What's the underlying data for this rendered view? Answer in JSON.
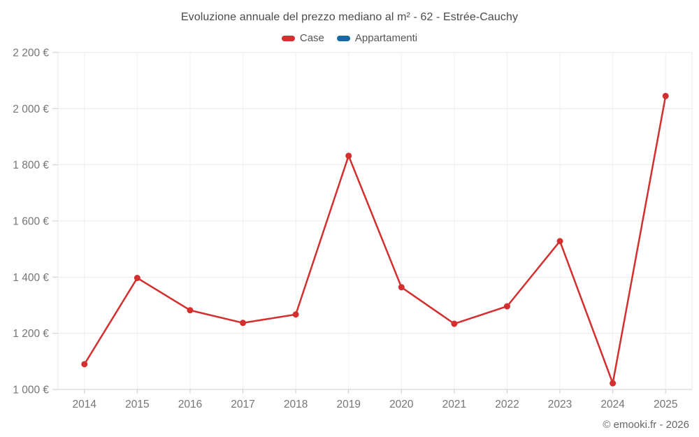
{
  "footer": {
    "credit": "© emooki.fr - 2026"
  },
  "chart_data": {
    "type": "line",
    "title": "Evoluzione annuale del prezzo mediano al m² - 62 - Estrée-Cauchy",
    "categories": [
      "2014",
      "2015",
      "2016",
      "2017",
      "2018",
      "2019",
      "2020",
      "2021",
      "2022",
      "2023",
      "2024",
      "2025"
    ],
    "series": [
      {
        "name": "Case",
        "color": "#d32f2f",
        "values": [
          1090,
          1397,
          1282,
          1237,
          1267,
          1832,
          1364,
          1234,
          1296,
          1528,
          1022,
          2045
        ]
      },
      {
        "name": "Appartamenti",
        "color": "#1669a2",
        "values": []
      }
    ],
    "xlabel": "",
    "ylabel": "",
    "ylim": [
      1000,
      2200
    ],
    "ytick_step": 200,
    "ytick_labels": [
      "1 000 €",
      "1 200 €",
      "1 400 €",
      "1 600 €",
      "1 800 €",
      "2 000 €",
      "2 200 €"
    ],
    "currency": "€",
    "grid": true,
    "legend_position": "top"
  },
  "colors": {
    "case_red": "#d32f2f",
    "appartamenti_blue": "#1669a2",
    "grid_light": "#efefef",
    "grid_horizontal": "#e9e9e9",
    "axis_line": "#cccccc",
    "tick_text": "#757575",
    "title_text": "#4a4a4a"
  }
}
